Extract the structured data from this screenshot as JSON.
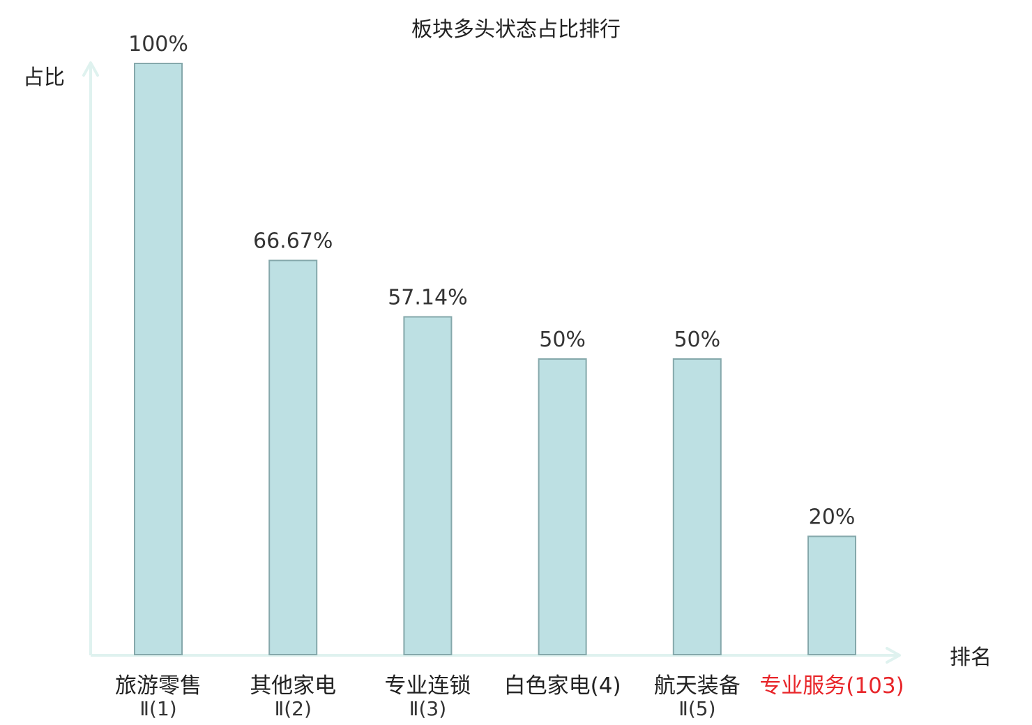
{
  "chart_data": {
    "type": "bar",
    "title": "板块多头状态占比排行",
    "ylabel": "占比",
    "xlabel": "排名",
    "ylim": [
      0,
      100
    ],
    "grid": false,
    "categories": [
      {
        "line1": "旅游零售",
        "line2": "Ⅱ(1)",
        "highlight": false
      },
      {
        "line1": "其他家电",
        "line2": "Ⅱ(2)",
        "highlight": false
      },
      {
        "line1": "专业连锁",
        "line2": "Ⅱ(3)",
        "highlight": false
      },
      {
        "line1": "白色家电(4)",
        "line2": "",
        "highlight": false
      },
      {
        "line1": "航天装备",
        "line2": "Ⅱ(5)",
        "highlight": false
      },
      {
        "line1": "专业服务(103)",
        "line2": "",
        "highlight": true
      }
    ],
    "values": [
      100,
      66.67,
      57.14,
      50,
      50,
      20
    ],
    "value_labels": [
      "100%",
      "66.67%",
      "57.14%",
      "50%",
      "50%",
      "20%"
    ],
    "colors": {
      "bar_fill": "#bde0e3",
      "bar_stroke": "#85a8ab",
      "axis": "#dff2ef",
      "highlight_label": "#e8262a"
    }
  }
}
